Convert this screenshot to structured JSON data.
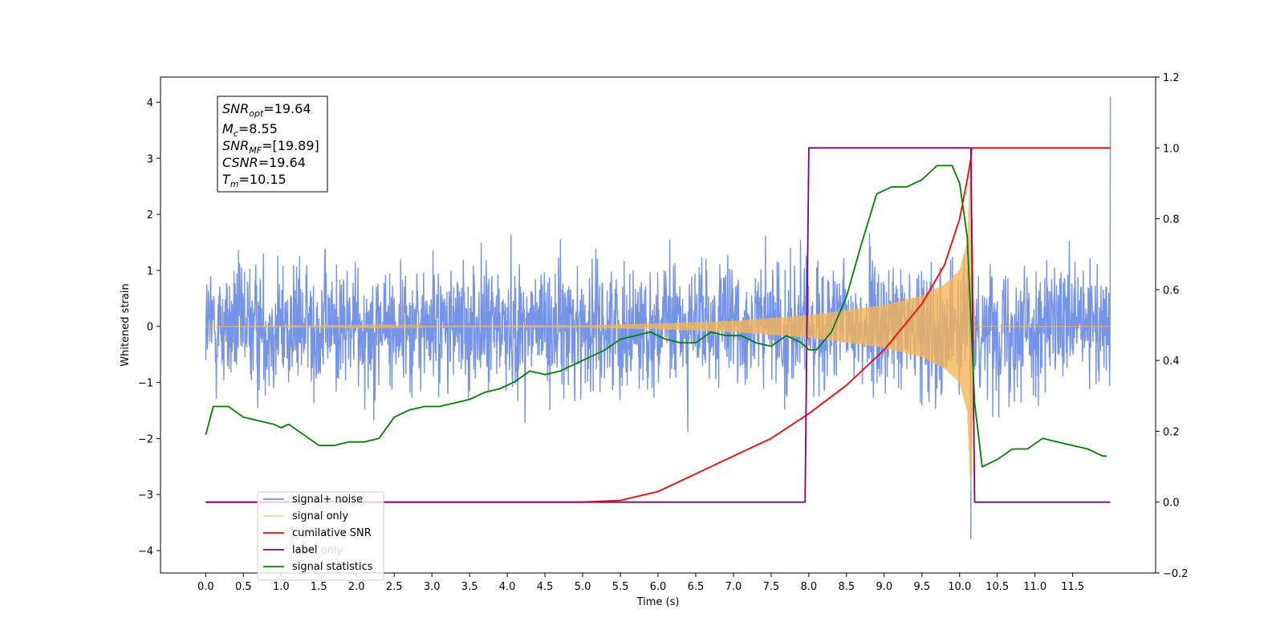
{
  "chart_data": {
    "type": "line",
    "xlabel": "Time (s)",
    "ylabel": "Whitened strain",
    "xlim": [
      -0.6,
      12.6
    ],
    "ylim": [
      -4.4,
      4.45
    ],
    "y2lim": [
      -0.2,
      1.2
    ],
    "x_ticks": [
      "0.0",
      "0.5",
      "1.0",
      "1.5",
      "2.0",
      "2.5",
      "3.0",
      "3.5",
      "4.0",
      "4.5",
      "5.0",
      "5.5",
      "6.0",
      "6.5",
      "7.0",
      "7.5",
      "8.0",
      "8.5",
      "9.0",
      "9.5",
      "10.0",
      "10.5",
      "11.0",
      "11.5"
    ],
    "y_ticks": [
      "−4",
      "−3",
      "−2",
      "−1",
      "0",
      "1",
      "2",
      "3",
      "4"
    ],
    "y2_ticks": [
      "−0.2",
      "0.0",
      "0.2",
      "0.4",
      "0.6",
      "0.8",
      "1.0",
      "1.2"
    ],
    "annotation": [
      {
        "main": "SNR",
        "sub": "opt",
        "rest": "=19.64"
      },
      {
        "main": "M",
        "sub": "c",
        "rest": "=8.55"
      },
      {
        "main": "SNR",
        "sub": "MF",
        "rest": "=[19.89]"
      },
      {
        "main": "CSNR",
        "sub": "",
        "rest": "=19.64"
      },
      {
        "main": "T",
        "sub": "m",
        "rest": "=10.15"
      }
    ],
    "legend": {
      "placement": "lower-left",
      "entries": [
        "signal+ noise",
        "signal only",
        "cumilative SNR",
        "label",
        "signal statistics"
      ],
      "hidden_entries_partial": [
        "label only",
        "signal statistics"
      ]
    },
    "series": [
      {
        "name": "signal+ noise",
        "axis": "left",
        "color": "#6f8ee6",
        "description_values": {
          "x_start": 0.0,
          "x_end": 12.0,
          "typical_min": -2.0,
          "typical_max": 2.0,
          "peak_max": 4.1,
          "peak_min": -3.8
        }
      },
      {
        "name": "signal only",
        "axis": "left",
        "color": "#f5b556",
        "envelope": [
          [
            0.0,
            0.0
          ],
          [
            5.0,
            0.02
          ],
          [
            6.0,
            0.05
          ],
          [
            7.0,
            0.1
          ],
          [
            8.0,
            0.2
          ],
          [
            9.0,
            0.38
          ],
          [
            9.5,
            0.55
          ],
          [
            9.8,
            0.75
          ],
          [
            10.0,
            1.0
          ],
          [
            10.1,
            1.5
          ],
          [
            10.15,
            3.0
          ],
          [
            10.2,
            0.0
          ],
          [
            12.0,
            0.0
          ]
        ]
      },
      {
        "name": "cumilative SNR",
        "axis": "right",
        "color": "#ff0000",
        "x": [
          0.0,
          5.0,
          5.5,
          6.0,
          6.5,
          7.0,
          7.5,
          8.0,
          8.5,
          9.0,
          9.5,
          9.8,
          10.0,
          10.1,
          10.15,
          10.16,
          12.0
        ],
        "y": [
          0.0,
          0.0,
          0.005,
          0.03,
          0.08,
          0.13,
          0.18,
          0.25,
          0.33,
          0.43,
          0.56,
          0.67,
          0.8,
          0.91,
          0.97,
          1.0,
          1.0
        ]
      },
      {
        "name": "label",
        "axis": "right",
        "color": "#800080",
        "x": [
          0.0,
          7.95,
          8.0,
          10.15,
          10.2,
          12.0
        ],
        "y": [
          0.0,
          0.0,
          1.0,
          1.0,
          0.0,
          0.0
        ]
      },
      {
        "name": "signal statistics",
        "axis": "right",
        "color": "#008000",
        "x": [
          0.0,
          0.1,
          0.2,
          0.3,
          0.5,
          0.7,
          0.9,
          1.0,
          1.1,
          1.3,
          1.5,
          1.7,
          1.9,
          2.1,
          2.3,
          2.5,
          2.7,
          2.9,
          3.1,
          3.3,
          3.5,
          3.7,
          3.9,
          4.1,
          4.3,
          4.5,
          4.7,
          4.9,
          5.1,
          5.3,
          5.5,
          5.7,
          5.9,
          6.1,
          6.3,
          6.5,
          6.7,
          6.9,
          7.1,
          7.3,
          7.5,
          7.7,
          7.9,
          8.0,
          8.1,
          8.3,
          8.5,
          8.7,
          8.9,
          9.1,
          9.3,
          9.5,
          9.7,
          9.9,
          10.0,
          10.1,
          10.2,
          10.3,
          10.5,
          10.7,
          10.9,
          11.1,
          11.3,
          11.5,
          11.7,
          11.9,
          11.95
        ],
        "y": [
          0.19,
          0.27,
          0.27,
          0.27,
          0.24,
          0.23,
          0.22,
          0.21,
          0.22,
          0.19,
          0.16,
          0.16,
          0.17,
          0.17,
          0.18,
          0.24,
          0.26,
          0.27,
          0.27,
          0.28,
          0.29,
          0.31,
          0.32,
          0.34,
          0.37,
          0.36,
          0.37,
          0.39,
          0.41,
          0.43,
          0.46,
          0.47,
          0.48,
          0.46,
          0.45,
          0.45,
          0.48,
          0.47,
          0.47,
          0.45,
          0.44,
          0.47,
          0.45,
          0.43,
          0.43,
          0.48,
          0.58,
          0.73,
          0.87,
          0.89,
          0.89,
          0.91,
          0.95,
          0.95,
          0.9,
          0.75,
          0.28,
          0.1,
          0.12,
          0.15,
          0.15,
          0.18,
          0.17,
          0.16,
          0.15,
          0.13,
          0.13
        ]
      }
    ]
  }
}
